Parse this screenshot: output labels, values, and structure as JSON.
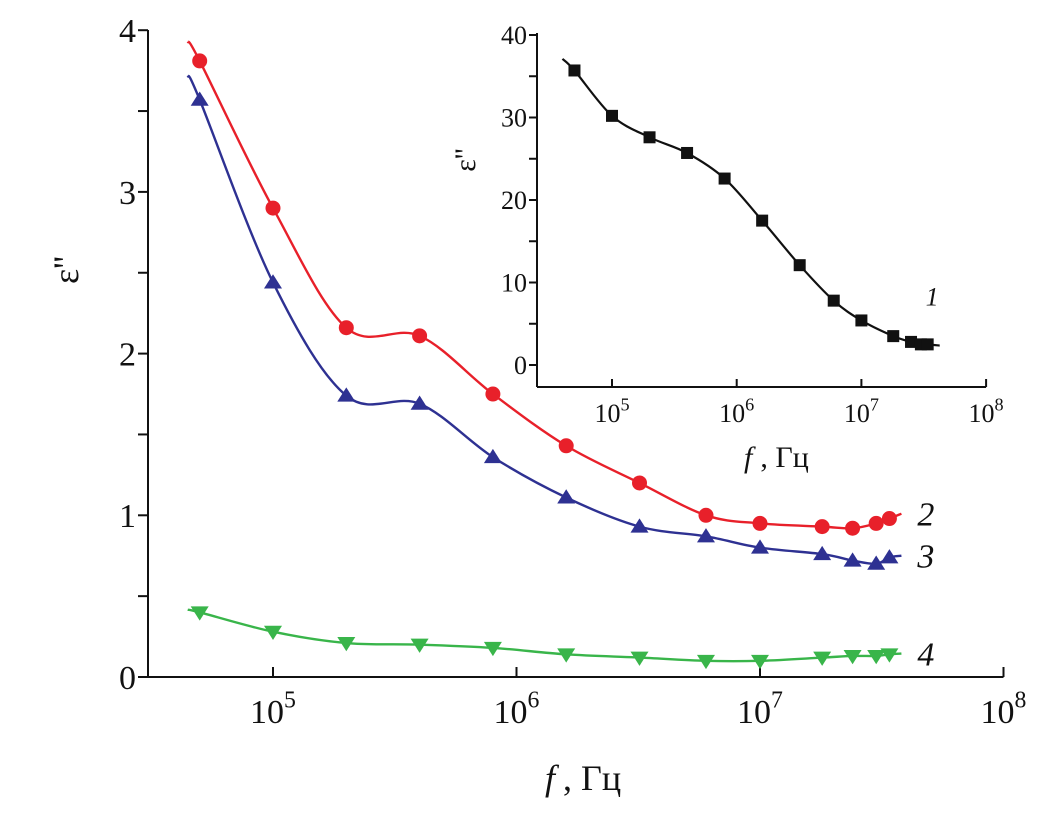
{
  "chart_data": [
    {
      "type": "line",
      "title": "",
      "xlabel_var": "f",
      "xlabel_unit": ", Гц",
      "ylabel": "ε''",
      "xscale": "log",
      "xlim": [
        30700,
        100000000
      ],
      "ylim": [
        0,
        4
      ],
      "yticks": [
        0,
        1,
        2,
        3,
        4
      ],
      "ytick_labels": [
        "0",
        "1",
        "2",
        "3",
        "4"
      ],
      "xticks": [
        100000,
        1000000,
        10000000,
        100000000
      ],
      "xtick_labels": [
        [
          "10",
          "5"
        ],
        [
          "10",
          "6"
        ],
        [
          "10",
          "7"
        ],
        [
          "10",
          "8"
        ]
      ],
      "grid": false,
      "x": [
        50000,
        100000,
        200000,
        400000,
        800000,
        1600000,
        3200000,
        6000000,
        10000000,
        18000000,
        24000000,
        30000000,
        34000000
      ],
      "series": [
        {
          "name": "2",
          "color": "#e8202a",
          "marker": "circle",
          "values": [
            3.81,
            2.9,
            2.16,
            2.11,
            1.75,
            1.43,
            1.2,
            1.0,
            0.95,
            0.93,
            0.92,
            0.95,
            0.98
          ]
        },
        {
          "name": "3",
          "color": "#2e3192",
          "marker": "triangle-up",
          "values": [
            3.57,
            2.44,
            1.74,
            1.69,
            1.36,
            1.11,
            0.93,
            0.87,
            0.8,
            0.76,
            0.72,
            0.7,
            0.74
          ]
        },
        {
          "name": "4",
          "color": "#39b54a",
          "marker": "triangle-down",
          "values": [
            0.4,
            0.28,
            0.21,
            0.2,
            0.18,
            0.14,
            0.12,
            0.1,
            0.1,
            0.12,
            0.13,
            0.13,
            0.14
          ]
        }
      ]
    },
    {
      "type": "line",
      "title": "",
      "xlabel_var": "f",
      "xlabel_unit": ", Гц",
      "ylabel": "ε''",
      "xscale": "log",
      "xlim": [
        25000,
        100000000
      ],
      "ylim": [
        -3,
        40
      ],
      "yticks": [
        0,
        10,
        20,
        30,
        40
      ],
      "ytick_labels": [
        "0",
        "10",
        "20",
        "30",
        "40"
      ],
      "xticks": [
        100000,
        1000000,
        10000000,
        100000000
      ],
      "xtick_labels": [
        [
          "10",
          "5"
        ],
        [
          "10",
          "6"
        ],
        [
          "10",
          "7"
        ],
        [
          "10",
          "8"
        ]
      ],
      "grid": false,
      "x": [
        50000,
        100000,
        200000,
        400000,
        800000,
        1600000,
        3200000,
        6000000,
        10000000,
        18000000,
        25000000,
        30000000,
        34000000
      ],
      "series": [
        {
          "name": "1",
          "color": "#111111",
          "marker": "square",
          "values": [
            35.7,
            30.2,
            27.6,
            25.7,
            22.6,
            17.5,
            12.1,
            7.8,
            5.4,
            3.5,
            2.8,
            2.5,
            2.5
          ]
        }
      ]
    }
  ]
}
